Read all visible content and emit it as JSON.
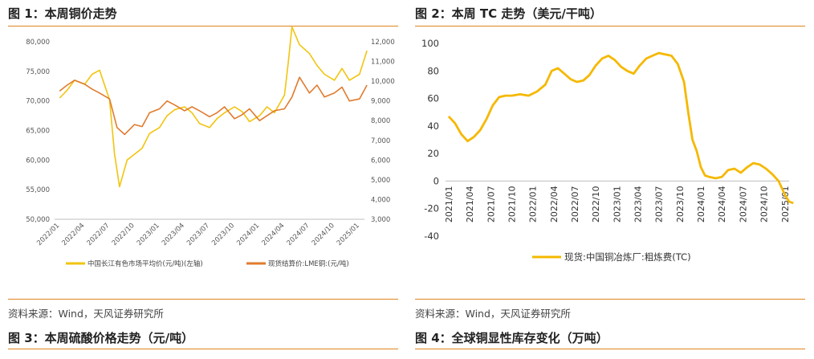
{
  "colors": {
    "accent": "#e0841d",
    "series_yellow": "#f2c40f",
    "series_orange": "#e07b2e",
    "tc_line": "#f5b800"
  },
  "left": {
    "title": "图 1：本周铜价走势",
    "source": "资料来源：Wind，天风证券研究所",
    "bottom_title": "图 3：本周硫酸价格走势（元/吨）"
  },
  "right": {
    "title": "图 2：本周 TC 走势（美元/干吨）",
    "source": "资料来源：Wind，天风证券研究所",
    "bottom_title": "图 4：全球铜显性库存变化（万吨）"
  },
  "chart_data": [
    {
      "type": "line",
      "title": "",
      "x_categories": [
        "2022/01",
        "2022/04",
        "2022/07",
        "2022/10",
        "2023/01",
        "2023/04",
        "2023/07",
        "2023/10",
        "2024/01",
        "2024/04",
        "2024/07",
        "2024/10",
        "2025/01"
      ],
      "y_left": {
        "min": 50000,
        "max": 80000,
        "ticks": [
          "50,000",
          "55,000",
          "60,000",
          "65,000",
          "70,000",
          "75,000",
          "80,000"
        ]
      },
      "y_right": {
        "min": 3000,
        "max": 12000,
        "ticks": [
          "3,000",
          "4,000",
          "5,000",
          "6,000",
          "7,000",
          "8,000",
          "9,000",
          "10,000",
          "11,000",
          "12,000"
        ]
      },
      "series": [
        {
          "name": "中国长江有色市场平均价(元/吨)(左轴)",
          "axis": "left",
          "x": [
            0,
            0.3,
            0.6,
            1,
            1.3,
            1.6,
            2,
            2.2,
            2.4,
            2.7,
            3,
            3.3,
            3.6,
            4,
            4.3,
            4.6,
            5,
            5.3,
            5.6,
            6,
            6.3,
            6.6,
            7,
            7.3,
            7.6,
            8,
            8.3,
            8.6,
            8.8,
            9,
            9.15,
            9.3,
            9.6,
            10,
            10.3,
            10.6,
            11,
            11.3,
            11.6,
            12,
            12.3
          ],
          "values": [
            70500,
            71800,
            73500,
            72800,
            74500,
            75200,
            70200,
            61000,
            55500,
            60000,
            61000,
            62000,
            64500,
            65500,
            67500,
            68500,
            69000,
            68000,
            66200,
            65500,
            67000,
            68000,
            69000,
            68200,
            66500,
            67500,
            69000,
            68000,
            69500,
            71000,
            76500,
            82500,
            79500,
            78000,
            76000,
            74500,
            73500,
            75500,
            73500,
            74500,
            78500
          ]
        },
        {
          "name": "现货结算价:LME铜:(元/吨)",
          "axis": "right",
          "x": [
            0,
            0.3,
            0.6,
            1,
            1.3,
            1.6,
            2,
            2.3,
            2.6,
            3,
            3.3,
            3.6,
            4,
            4.3,
            4.6,
            5,
            5.3,
            5.6,
            6,
            6.3,
            6.6,
            7,
            7.3,
            7.6,
            8,
            8.3,
            8.6,
            9,
            9.3,
            9.6,
            10,
            10.3,
            10.6,
            11,
            11.3,
            11.6,
            12,
            12.3
          ],
          "values": [
            9500,
            9800,
            10050,
            9850,
            9600,
            9400,
            9100,
            7650,
            7300,
            7800,
            7700,
            8400,
            8600,
            9000,
            8800,
            8500,
            8700,
            8500,
            8200,
            8400,
            8700,
            8100,
            8300,
            8600,
            8000,
            8250,
            8500,
            8600,
            9200,
            10200,
            9400,
            9800,
            9200,
            9400,
            9700,
            9000,
            9100,
            9800
          ]
        }
      ]
    },
    {
      "type": "line",
      "title": "",
      "x_categories": [
        "2021/01",
        "2021/04",
        "2021/07",
        "2021/10",
        "2022/01",
        "2022/04",
        "2022/07",
        "2022/10",
        "2023/01",
        "2023/04",
        "2023/07",
        "2023/10",
        "2024/01",
        "2024/04",
        "2024/07",
        "2024/10",
        "2025/01"
      ],
      "y_axis": {
        "min": -40,
        "max": 100,
        "ticks": [
          "-40",
          "-20",
          "0",
          "20",
          "40",
          "60",
          "80",
          "100"
        ]
      },
      "series": [
        {
          "name": "现货:中国铜冶炼厂:粗炼费(TC)",
          "x": [
            0,
            0.3,
            0.6,
            0.9,
            1.2,
            1.5,
            1.8,
            2.1,
            2.4,
            2.7,
            3,
            3.4,
            3.8,
            4.2,
            4.6,
            4.9,
            5.2,
            5.5,
            5.8,
            6.1,
            6.4,
            6.7,
            7,
            7.3,
            7.6,
            7.9,
            8.2,
            8.5,
            8.8,
            9.1,
            9.4,
            9.7,
            10,
            10.3,
            10.6,
            10.9,
            11.2,
            11.4,
            11.6,
            11.8,
            12,
            12.2,
            12.4,
            12.7,
            13,
            13.3,
            13.6,
            13.9,
            14.2,
            14.5,
            14.8,
            15.1,
            15.4,
            15.7,
            16,
            16.2,
            16.4
          ],
          "values": [
            47,
            42,
            34,
            29,
            32,
            37,
            45,
            55,
            61,
            62,
            62,
            63,
            62,
            65,
            70,
            80,
            82,
            78,
            74,
            72,
            73,
            77,
            84,
            89,
            91,
            88,
            83,
            80,
            78,
            84,
            89,
            91,
            93,
            92,
            91,
            85,
            72,
            50,
            30,
            22,
            10,
            4,
            3,
            2,
            3,
            8,
            9,
            6,
            10,
            13,
            12,
            9,
            5,
            0,
            -10,
            -15,
            -16
          ]
        }
      ]
    }
  ]
}
